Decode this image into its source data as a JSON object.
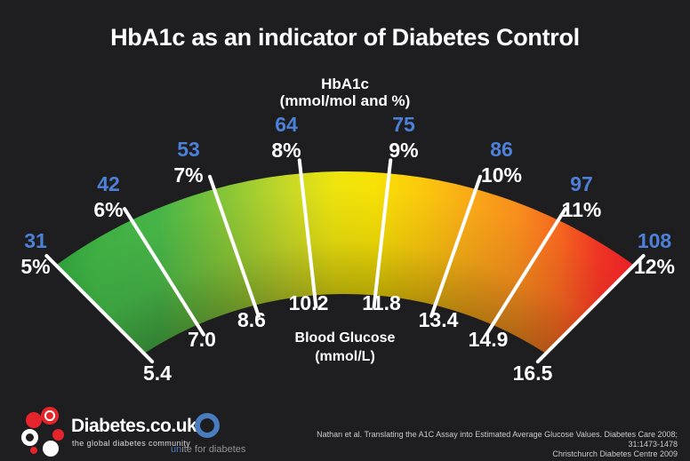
{
  "chart_data": {
    "type": "gauge",
    "title": "HbA1c as an indicator of Diabetes Control",
    "top_axis_title": "HbA1c",
    "top_axis_units_blue": "(mmol/mol",
    "top_axis_units_rest": "and %)",
    "bottom_axis_title": "Blood Glucose",
    "bottom_axis_units": "(mmol/L)",
    "points": [
      {
        "hba1c_mmol_mol": "31",
        "hba1c_percent": "5%",
        "blood_glucose": "5.4"
      },
      {
        "hba1c_mmol_mol": "42",
        "hba1c_percent": "6%",
        "blood_glucose": "7.0"
      },
      {
        "hba1c_mmol_mol": "53",
        "hba1c_percent": "7%",
        "blood_glucose": "8.6"
      },
      {
        "hba1c_mmol_mol": "64",
        "hba1c_percent": "8%",
        "blood_glucose": "10.2"
      },
      {
        "hba1c_mmol_mol": "75",
        "hba1c_percent": "9%",
        "blood_glucose": "11.8"
      },
      {
        "hba1c_mmol_mol": "86",
        "hba1c_percent": "10%",
        "blood_glucose": "13.4"
      },
      {
        "hba1c_mmol_mol": "97",
        "hba1c_percent": "11%",
        "blood_glucose": "14.9"
      },
      {
        "hba1c_mmol_mol": "108",
        "hba1c_percent": "12%",
        "blood_glucose": "16.5"
      }
    ],
    "accent_blue": "#4d80d8",
    "tick_color": "#ffffff",
    "arc_gradient": [
      {
        "offset": 0.0,
        "color": "#2f9e3a"
      },
      {
        "offset": 0.07,
        "color": "#3fae43"
      },
      {
        "offset": 0.18,
        "color": "#47b447"
      },
      {
        "offset": 0.3,
        "color": "#8ac636"
      },
      {
        "offset": 0.4,
        "color": "#c6d827"
      },
      {
        "offset": 0.48,
        "color": "#eee40e"
      },
      {
        "offset": 0.55,
        "color": "#f8e206"
      },
      {
        "offset": 0.63,
        "color": "#fbc90d"
      },
      {
        "offset": 0.72,
        "color": "#f9a818"
      },
      {
        "offset": 0.8,
        "color": "#f78d1d"
      },
      {
        "offset": 0.87,
        "color": "#f4671f"
      },
      {
        "offset": 0.94,
        "color": "#ee3424"
      },
      {
        "offset": 1.0,
        "color": "#e81f27"
      }
    ]
  },
  "footer": {
    "diabetes_logo": {
      "wordmark": "Diabetes.co.uk",
      "tagline": "the global diabetes community"
    },
    "unite_logo": {
      "text_blue": "un",
      "text_rest": "ite for diabetes"
    },
    "citation_line1": "Nathan et al. Translating the A1C Assay into Estimated Average Glucose Values. Diabetes Care 2008; 31:1473-1478",
    "citation_line2": "Christchurch Diabetes Centre 2009"
  }
}
